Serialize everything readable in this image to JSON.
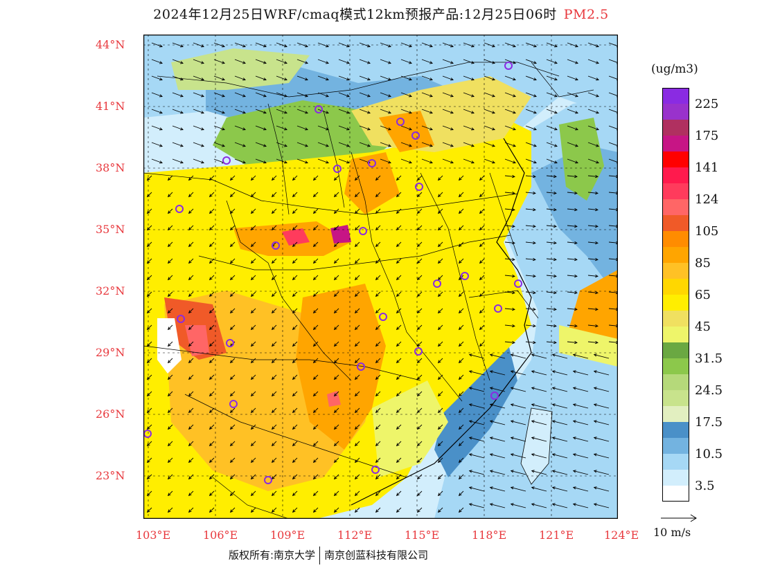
{
  "title": {
    "main": "2024年12月25日WRF/cmaq模式12km预报产品:12月25日06时",
    "variable": "PM2.5"
  },
  "colorbar": {
    "units": "(ug/m3)",
    "levels": [
      {
        "label": "225",
        "color": "#8a2be2"
      },
      {
        "label": "",
        "color": "#9932cc"
      },
      {
        "label": "175",
        "color": "#b03060"
      },
      {
        "label": "",
        "color": "#c71585"
      },
      {
        "label": "141",
        "color": "#ff0000"
      },
      {
        "label": "",
        "color": "#ff1a4d"
      },
      {
        "label": "124",
        "color": "#ff3b5c"
      },
      {
        "label": "",
        "color": "#ff6666"
      },
      {
        "label": "105",
        "color": "#f05a28"
      },
      {
        "label": "",
        "color": "#ff8c00"
      },
      {
        "label": "85",
        "color": "#ffa500"
      },
      {
        "label": "",
        "color": "#ffc125"
      },
      {
        "label": "65",
        "color": "#ffd700"
      },
      {
        "label": "",
        "color": "#ffee00"
      },
      {
        "label": "45",
        "color": "#f0e060"
      },
      {
        "label": "",
        "color": "#eef56a"
      },
      {
        "label": "31.5",
        "color": "#6aa842"
      },
      {
        "label": "",
        "color": "#8cc84b"
      },
      {
        "label": "24.5",
        "color": "#b5d97a"
      },
      {
        "label": "",
        "color": "#c8e38c"
      },
      {
        "label": "17.5",
        "color": "#e2efc0"
      },
      {
        "label": "",
        "color": "#4a90c8"
      },
      {
        "label": "10.5",
        "color": "#73b3e0"
      },
      {
        "label": "",
        "color": "#a6d8f5"
      },
      {
        "label": "3.5",
        "color": "#d2eefc"
      },
      {
        "label": "",
        "color": "#ffffff"
      }
    ]
  },
  "axes": {
    "lat_labels": [
      "44°N",
      "41°N",
      "38°N",
      "35°N",
      "32°N",
      "29°N",
      "26°N",
      "23°N"
    ],
    "lon_labels": [
      "103°E",
      "106°E",
      "109°E",
      "112°E",
      "115°E",
      "118°E",
      "121°E",
      "124°E"
    ],
    "label_color": "#e8383d"
  },
  "wind_reference": "10 m/s",
  "copyright": {
    "left": "版权所有:南京大学",
    "right": "南京创蓝科技有限公司"
  }
}
